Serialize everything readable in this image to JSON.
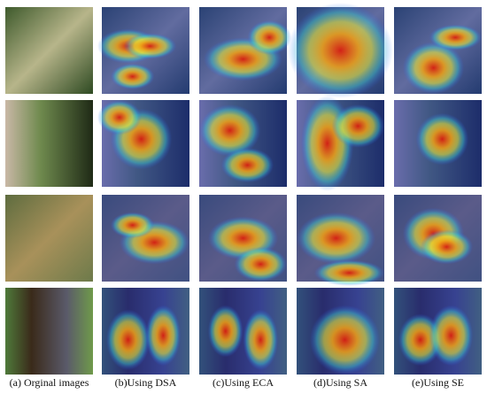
{
  "captions": [
    "(a) Orginal images",
    "(b)Using DSA",
    "(c)Using ECA",
    "(d)Using SA",
    "(e)Using SE"
  ]
}
